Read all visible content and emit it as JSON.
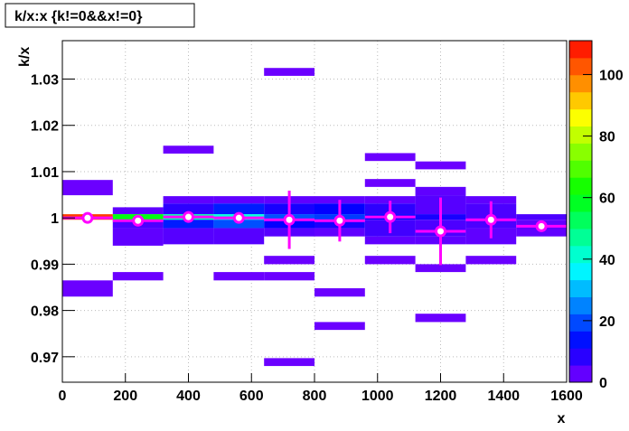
{
  "chart_data": {
    "type": "histogram2d",
    "title": "k/x:x {k!=0&&x!=0}",
    "x_label": "x",
    "y_label": "k/x",
    "xlim": [
      0,
      1600
    ],
    "ylim": [
      0.9645,
      1.0383
    ],
    "zlim": [
      0,
      111
    ],
    "xticks": [
      0,
      200,
      400,
      600,
      800,
      1000,
      1200,
      1400,
      1600
    ],
    "yticks": [
      0.97,
      0.98,
      0.99,
      1,
      1.01,
      1.02,
      1.03
    ],
    "zticks": [
      0,
      20,
      40,
      60,
      80,
      100
    ],
    "grid": true,
    "cells": [
      [
        0,
        160,
        1.0049,
        1.0082,
        2
      ],
      [
        0,
        160,
        0.9996,
        1.0008,
        105
      ],
      [
        0,
        160,
        0.983,
        0.9865,
        2
      ],
      [
        160,
        320,
        1.0008,
        1.0023,
        3
      ],
      [
        160,
        320,
        0.9996,
        1.0008,
        60
      ],
      [
        160,
        320,
        0.9978,
        0.9996,
        5
      ],
      [
        160,
        320,
        0.994,
        0.9978,
        3
      ],
      [
        160,
        320,
        0.9865,
        0.9883,
        2
      ],
      [
        320,
        480,
        1.0139,
        1.0156,
        2
      ],
      [
        320,
        480,
        1.0031,
        1.0047,
        3
      ],
      [
        320,
        480,
        1.0008,
        1.0031,
        8
      ],
      [
        320,
        480,
        0.9996,
        1.0008,
        45
      ],
      [
        320,
        480,
        0.9978,
        0.9996,
        15
      ],
      [
        320,
        480,
        0.9943,
        0.9978,
        4
      ],
      [
        480,
        640,
        1.0031,
        1.0047,
        3
      ],
      [
        480,
        640,
        1.0008,
        1.0031,
        15
      ],
      [
        480,
        640,
        0.9996,
        1.0008,
        40
      ],
      [
        480,
        640,
        0.9978,
        0.9996,
        20
      ],
      [
        480,
        640,
        0.9943,
        0.9978,
        4
      ],
      [
        480,
        640,
        0.9865,
        0.9883,
        2
      ],
      [
        640,
        800,
        1.0307,
        1.0324,
        2
      ],
      [
        640,
        800,
        1.0031,
        1.0047,
        3
      ],
      [
        640,
        800,
        1.0008,
        1.0031,
        10
      ],
      [
        640,
        800,
        0.9996,
        1.0008,
        20
      ],
      [
        640,
        800,
        0.9978,
        0.9996,
        12
      ],
      [
        640,
        800,
        0.996,
        0.9978,
        4
      ],
      [
        640,
        800,
        0.99,
        0.9918,
        2
      ],
      [
        640,
        800,
        0.9865,
        0.9883,
        2
      ],
      [
        640,
        800,
        0.968,
        0.9697,
        2
      ],
      [
        800,
        960,
        1.0031,
        1.0047,
        3
      ],
      [
        800,
        960,
        1.0008,
        1.0031,
        12
      ],
      [
        800,
        960,
        0.9996,
        1.0008,
        18
      ],
      [
        800,
        960,
        0.9978,
        0.9996,
        10
      ],
      [
        800,
        960,
        0.996,
        0.9978,
        3
      ],
      [
        800,
        960,
        0.983,
        0.9848,
        2
      ],
      [
        800,
        960,
        0.9758,
        0.9775,
        2
      ],
      [
        960,
        1120,
        1.0123,
        1.014,
        2
      ],
      [
        960,
        1120,
        1.0067,
        1.0084,
        2
      ],
      [
        960,
        1120,
        1.0031,
        1.0047,
        3
      ],
      [
        960,
        1120,
        1.0008,
        1.0031,
        8
      ],
      [
        960,
        1120,
        0.9996,
        1.0008,
        12
      ],
      [
        960,
        1120,
        0.996,
        0.9996,
        6
      ],
      [
        960,
        1120,
        0.9943,
        0.996,
        3
      ],
      [
        960,
        1120,
        0.99,
        0.9918,
        2
      ],
      [
        1120,
        1280,
        1.0105,
        1.0122,
        2
      ],
      [
        1120,
        1280,
        1.0049,
        1.0067,
        3
      ],
      [
        1120,
        1280,
        1.0008,
        1.0049,
        4
      ],
      [
        1120,
        1280,
        0.9996,
        1.0008,
        10
      ],
      [
        1120,
        1280,
        0.996,
        0.9996,
        5
      ],
      [
        1120,
        1280,
        0.9943,
        0.996,
        3
      ],
      [
        1120,
        1280,
        0.9883,
        0.99,
        2
      ],
      [
        1120,
        1280,
        0.9775,
        0.9793,
        2
      ],
      [
        1280,
        1440,
        1.0031,
        1.0047,
        3
      ],
      [
        1280,
        1440,
        0.9978,
        1.0031,
        5
      ],
      [
        1280,
        1440,
        0.9943,
        0.9978,
        3
      ],
      [
        1280,
        1440,
        0.99,
        0.9918,
        2
      ],
      [
        1440,
        1600,
        0.9996,
        1.0008,
        5
      ],
      [
        1440,
        1600,
        0.996,
        0.9996,
        3
      ]
    ],
    "profile": {
      "color": "#ff00ff",
      "xerr": 80,
      "x": [
        80,
        240,
        400,
        560,
        720,
        880,
        1040,
        1200,
        1360,
        1520
      ],
      "values": [
        1.0,
        0.9994,
        1.0002,
        1.0,
        0.9996,
        0.9994,
        1.0002,
        0.9971,
        0.9996,
        0.9982
      ],
      "errors": [
        0.0012,
        0.0006,
        0.0012,
        0.0012,
        0.0063,
        0.0045,
        0.0035,
        0.0073,
        0.004,
        0.0008
      ]
    }
  }
}
